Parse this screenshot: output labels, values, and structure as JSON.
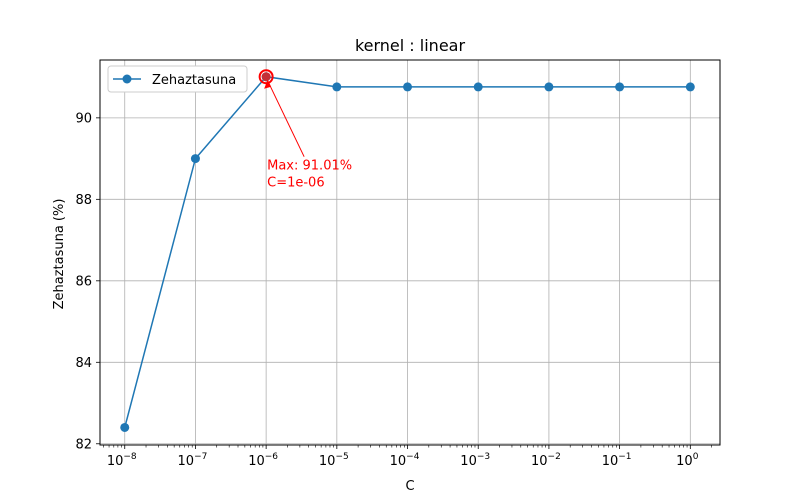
{
  "chart_data": {
    "type": "line",
    "title": "kernel : linear",
    "xlabel": "C",
    "ylabel": "Zehaztasuna (%)",
    "x_scale": "log",
    "x_tick_exponents": [
      -8,
      -7,
      -6,
      -5,
      -4,
      -3,
      -2,
      -1,
      0
    ],
    "x": [
      1e-08,
      1e-07,
      1e-06,
      1e-05,
      0.0001,
      0.001,
      0.01,
      0.1,
      1
    ],
    "series": [
      {
        "name": "Zehaztasuna",
        "color": "#1f77b4",
        "values": [
          82.4,
          89.0,
          91.01,
          90.76,
          90.76,
          90.76,
          90.76,
          90.76,
          90.76
        ]
      }
    ],
    "yticks": [
      82,
      84,
      86,
      88,
      90
    ],
    "ylim": [
      81.97,
      91.42
    ],
    "xlim_exp": [
      -8.35,
      0.42
    ],
    "grid": true,
    "legend_position": "upper-left",
    "max_point": {
      "x": 1e-06,
      "y": 91.01,
      "marker_color": "#ff0000",
      "annotation_lines": [
        "Max: 91.01%",
        "C=1e-06"
      ],
      "annotation_color": "#ff0000"
    }
  }
}
